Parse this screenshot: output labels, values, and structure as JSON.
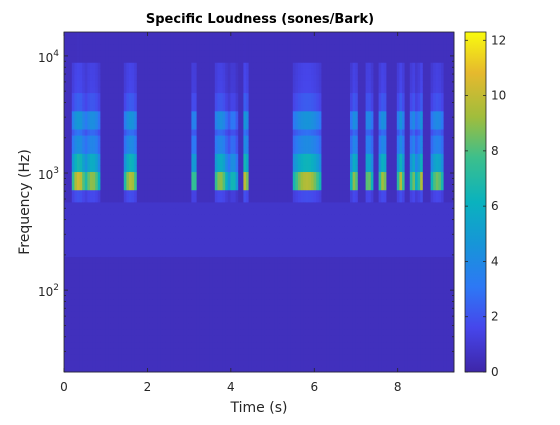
{
  "chart_data": {
    "type": "heatmap",
    "title": "Specific Loudness (sones/Bark)",
    "xlabel": "Time (s)",
    "ylabel": "Frequency (Hz)",
    "xlim": [
      0,
      9.35
    ],
    "ylim_hz": [
      20,
      16000
    ],
    "y_scale": "log",
    "x_ticks": [
      0,
      2,
      4,
      6,
      8
    ],
    "x_tick_labels": [
      "0",
      "2",
      "4",
      "6",
      "8"
    ],
    "y_ticks": [
      100,
      1000,
      10000
    ],
    "y_tick_labels": [
      {
        "base": "10",
        "exp": "2"
      },
      {
        "base": "10",
        "exp": "3"
      },
      {
        "base": "10",
        "exp": "4"
      }
    ],
    "colorbar": {
      "colormap": "parula",
      "limits": [
        0,
        12.3
      ],
      "ticks": [
        0,
        2,
        4,
        6,
        8,
        10,
        12
      ],
      "tick_labels": [
        "0",
        "2",
        "4",
        "6",
        "8",
        "10",
        "12"
      ]
    },
    "background_level": 0.5,
    "bursts": [
      {
        "t_start": 0.2,
        "t_end": 0.5,
        "peak": 10.8
      },
      {
        "t_start": 0.5,
        "t_end": 0.85,
        "peak": 9.5
      },
      {
        "t_start": 1.45,
        "t_end": 1.75,
        "peak": 10.2
      },
      {
        "t_start": 3.05,
        "t_end": 3.18,
        "peak": 8.5
      },
      {
        "t_start": 3.6,
        "t_end": 3.9,
        "peak": 9.5
      },
      {
        "t_start": 3.95,
        "t_end": 4.15,
        "peak": 7.0
      },
      {
        "t_start": 4.28,
        "t_end": 4.42,
        "peak": 10.6
      },
      {
        "t_start": 5.5,
        "t_end": 6.15,
        "peak": 10.2
      },
      {
        "t_start": 6.88,
        "t_end": 7.05,
        "peak": 9.5
      },
      {
        "t_start": 7.2,
        "t_end": 7.4,
        "peak": 9.0
      },
      {
        "t_start": 7.55,
        "t_end": 7.75,
        "peak": 9.8
      },
      {
        "t_start": 8.0,
        "t_end": 8.15,
        "peak": 10.2
      },
      {
        "t_start": 8.3,
        "t_end": 8.45,
        "peak": 9.0
      },
      {
        "t_start": 8.5,
        "t_end": 8.62,
        "peak": 10.2
      },
      {
        "t_start": 8.8,
        "t_end": 9.1,
        "peak": 9.0
      }
    ]
  }
}
